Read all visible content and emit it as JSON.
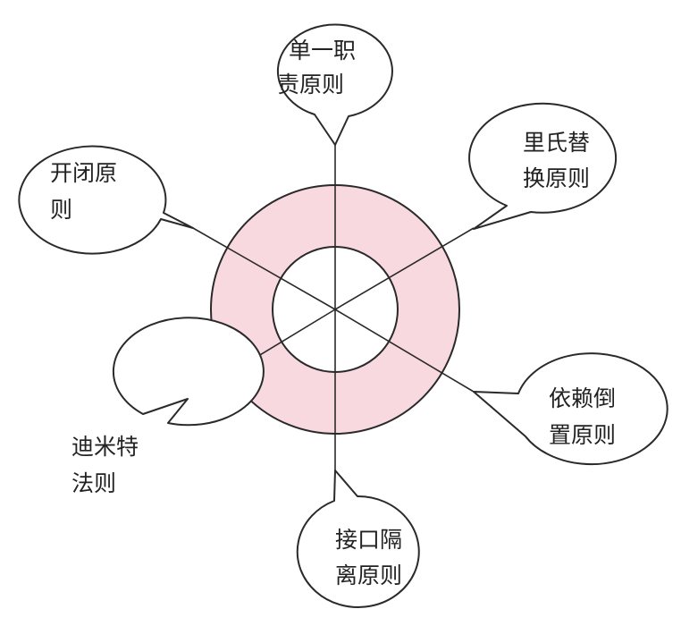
{
  "diagram": {
    "center_label": "",
    "ring_color": "#f9d9e0",
    "line_color": "#2a2a2a",
    "principles": [
      {
        "id": "srp",
        "line1": "单一职",
        "line2": "责原则"
      },
      {
        "id": "lsp",
        "line1": "里氏替",
        "line2": "换原则"
      },
      {
        "id": "dip",
        "line1": "依赖倒",
        "line2": "置原则"
      },
      {
        "id": "isp",
        "line1": "接口隔",
        "line2": "离原则"
      },
      {
        "id": "lod",
        "line1": "迪米特",
        "line2": "法则"
      },
      {
        "id": "ocp",
        "line1": "开闭原",
        "line2": "则"
      }
    ]
  }
}
